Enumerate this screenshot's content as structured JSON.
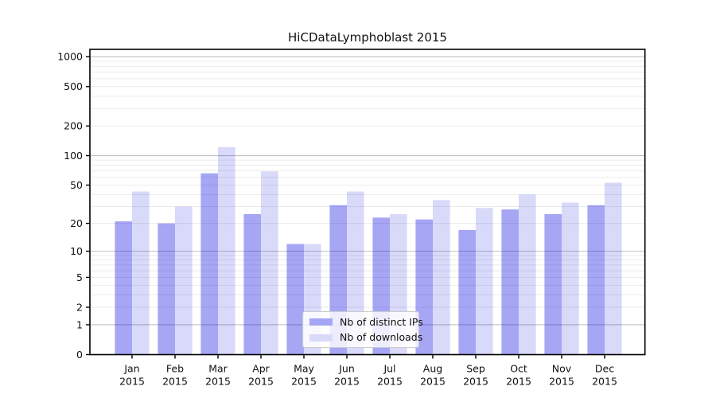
{
  "chart_data": {
    "type": "bar",
    "title": "HiCDataLymphoblast 2015",
    "categories": [
      "Jan",
      "Feb",
      "Mar",
      "Apr",
      "May",
      "Jun",
      "Jul",
      "Aug",
      "Sep",
      "Oct",
      "Nov",
      "Dec"
    ],
    "category_year": "2015",
    "series": [
      {
        "name": "Nb of distinct IPs",
        "color": "#a6a6f6",
        "base_color": "#0000e0",
        "alpha": 0.35,
        "values": [
          21,
          20,
          66,
          25,
          12,
          31,
          23,
          22,
          17,
          28,
          25,
          31
        ]
      },
      {
        "name": "Nb of downloads",
        "color": "#d9d9fa",
        "base_color": "#0000e0",
        "alpha": 0.15,
        "values": [
          43,
          30,
          122,
          69,
          12,
          43,
          25,
          35,
          29,
          40,
          33,
          53
        ]
      }
    ],
    "yscale": "log1p",
    "yticks": [
      0,
      1,
      2,
      5,
      10,
      20,
      50,
      100,
      200,
      500,
      1000
    ],
    "major_grid_values": [
      1,
      10,
      100,
      1000
    ],
    "ylim": [
      0,
      1190
    ],
    "grid": true,
    "legend_position": "lower center",
    "colors": {
      "major_grid": "#c0c0c0",
      "minor_grid": "#ebebeb",
      "axis": "#000000",
      "text": "#111111"
    }
  }
}
